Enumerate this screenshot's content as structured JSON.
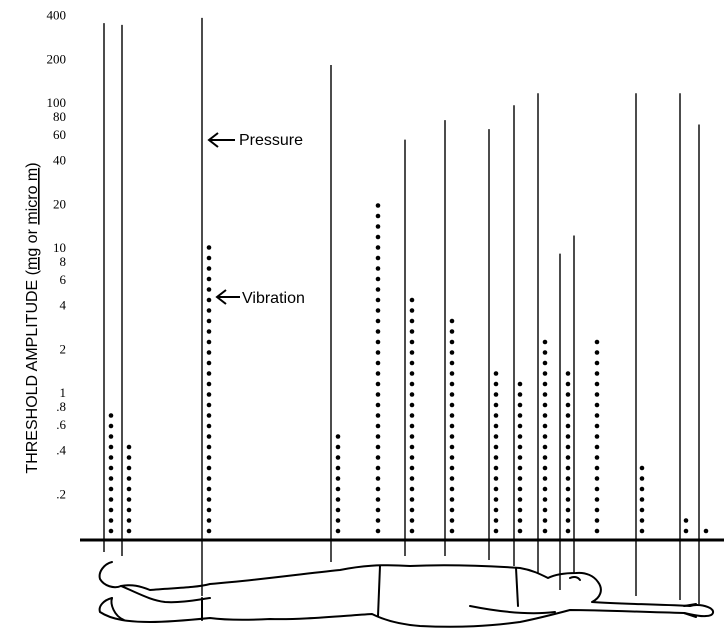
{
  "chart_data": {
    "type": "scatter",
    "ylabel_parts": [
      "THRESHOLD AMPLITUDE (",
      "mg",
      " or ",
      "micro m",
      ")"
    ],
    "y_scale": "log",
    "ylim": [
      0.1,
      400
    ],
    "y_ticks": [
      {
        "value": 400,
        "label": "400"
      },
      {
        "value": 200,
        "label": "200"
      },
      {
        "value": 100,
        "label": "100"
      },
      {
        "value": 80,
        "label": "80"
      },
      {
        "value": 60,
        "label": "60"
      },
      {
        "value": 40,
        "label": "40"
      },
      {
        "value": 20,
        "label": "20"
      },
      {
        "value": 10,
        "label": "10"
      },
      {
        "value": 8,
        "label": "8"
      },
      {
        "value": 6,
        "label": "6"
      },
      {
        "value": 4,
        "label": "4"
      },
      {
        "value": 2,
        "label": "2"
      },
      {
        "value": 1,
        "label": "1"
      },
      {
        "value": 0.8,
        "label": ".8"
      },
      {
        "value": 0.6,
        "label": ".6"
      },
      {
        "value": 0.4,
        "label": ".4"
      },
      {
        "value": 0.2,
        "label": ".2"
      }
    ],
    "series": [
      {
        "name": "Pressure",
        "style": "solid-line",
        "values": [
          350,
          340,
          380,
          180,
          55,
          75,
          65,
          95,
          115,
          9,
          12,
          115,
          115,
          70
        ]
      },
      {
        "name": "Vibration",
        "style": "dotted-line",
        "values": [
          0.7,
          0.45,
          10,
          0.55,
          22,
          4.5,
          3.5,
          1.5,
          1.2,
          2.5,
          1.5,
          2.5,
          0.33,
          0.13,
          0.12
        ]
      }
    ],
    "annotations": [
      {
        "text": "Pressure",
        "series": "Pressure"
      },
      {
        "text": "Vibration",
        "series": "Vibration"
      }
    ],
    "illustration": "reclining-human-body"
  }
}
